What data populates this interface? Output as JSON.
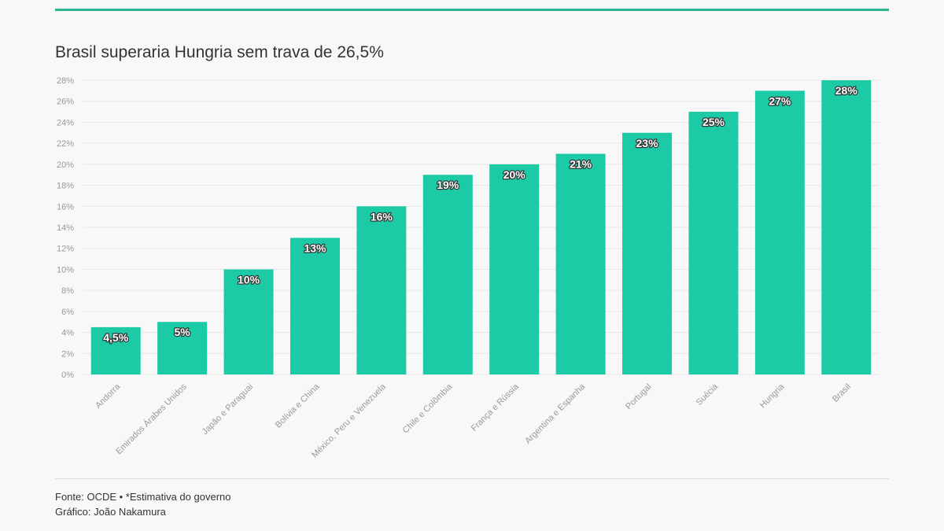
{
  "header": {
    "title": "Brasil superaria Hungria sem trava de 26,5%"
  },
  "footer": {
    "source": "Fonte: OCDE • *Estimativa do governo",
    "credit": "Gráfico: João Nakamura"
  },
  "colors": {
    "bar": "#1ccaa6",
    "accent_rule": "#2ab38f",
    "grid": "#e6e6e6",
    "axis_text": "#999999"
  },
  "chart_data": {
    "type": "bar",
    "categories": [
      "Andorra",
      "Emirados Árabes Unidos",
      "Japão e Paraguai",
      "Bolívia e China",
      "México, Peru e Venezuela",
      "Chile e Colômbia",
      "França e Rússia",
      "Argentina e Espanha",
      "Portugal",
      "Suécia",
      "Hungria",
      "Brasil"
    ],
    "values": [
      4.5,
      5,
      10,
      13,
      16,
      19,
      20,
      21,
      23,
      25,
      27,
      28
    ],
    "data_labels": [
      "4,5%",
      "5%",
      "10%",
      "13%",
      "16%",
      "19%",
      "20%",
      "21%",
      "23%",
      "25%",
      "27%",
      "28%"
    ],
    "yticks": [
      0,
      2,
      4,
      6,
      8,
      10,
      12,
      14,
      16,
      18,
      20,
      22,
      24,
      26,
      28
    ],
    "ytick_labels": [
      "0%",
      "2%",
      "4%",
      "6%",
      "8%",
      "10%",
      "12%",
      "14%",
      "16%",
      "18%",
      "20%",
      "22%",
      "24%",
      "26%",
      "28%"
    ],
    "ylim": [
      0,
      28
    ],
    "grid": true,
    "legend": "none"
  }
}
